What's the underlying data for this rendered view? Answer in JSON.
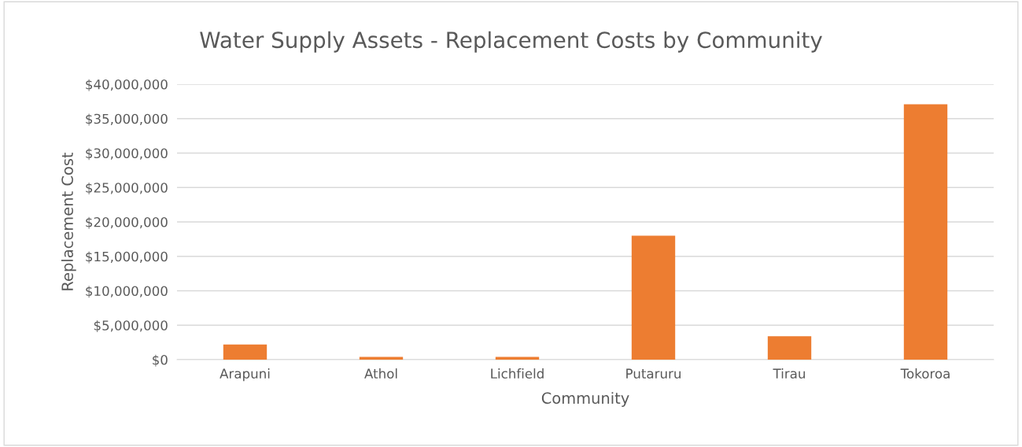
{
  "chart_data": {
    "type": "bar",
    "title": "Water Supply Assets - Replacement Costs by Community",
    "xlabel": "Community",
    "ylabel": "Replacement Cost",
    "categories": [
      "Arapuni",
      "Athol",
      "Lichfield",
      "Putaruru",
      "Tirau",
      "Tokoroa"
    ],
    "values": [
      2200000,
      400000,
      400000,
      18000000,
      3400000,
      37100000
    ],
    "color": "#ed7d31",
    "ylim": [
      0,
      40000000
    ],
    "yticks": [
      {
        "value": 0,
        "label": "$0"
      },
      {
        "value": 5000000,
        "label": "$5,000,000"
      },
      {
        "value": 10000000,
        "label": "$10,000,000"
      },
      {
        "value": 15000000,
        "label": "$15,000,000"
      },
      {
        "value": 20000000,
        "label": "$20,000,000"
      },
      {
        "value": 25000000,
        "label": "$25,000,000"
      },
      {
        "value": 30000000,
        "label": "$30,000,000"
      },
      {
        "value": 35000000,
        "label": "$35,000,000"
      },
      {
        "value": 40000000,
        "label": "$40,000,000"
      }
    ],
    "grid": "y",
    "legend": false
  }
}
